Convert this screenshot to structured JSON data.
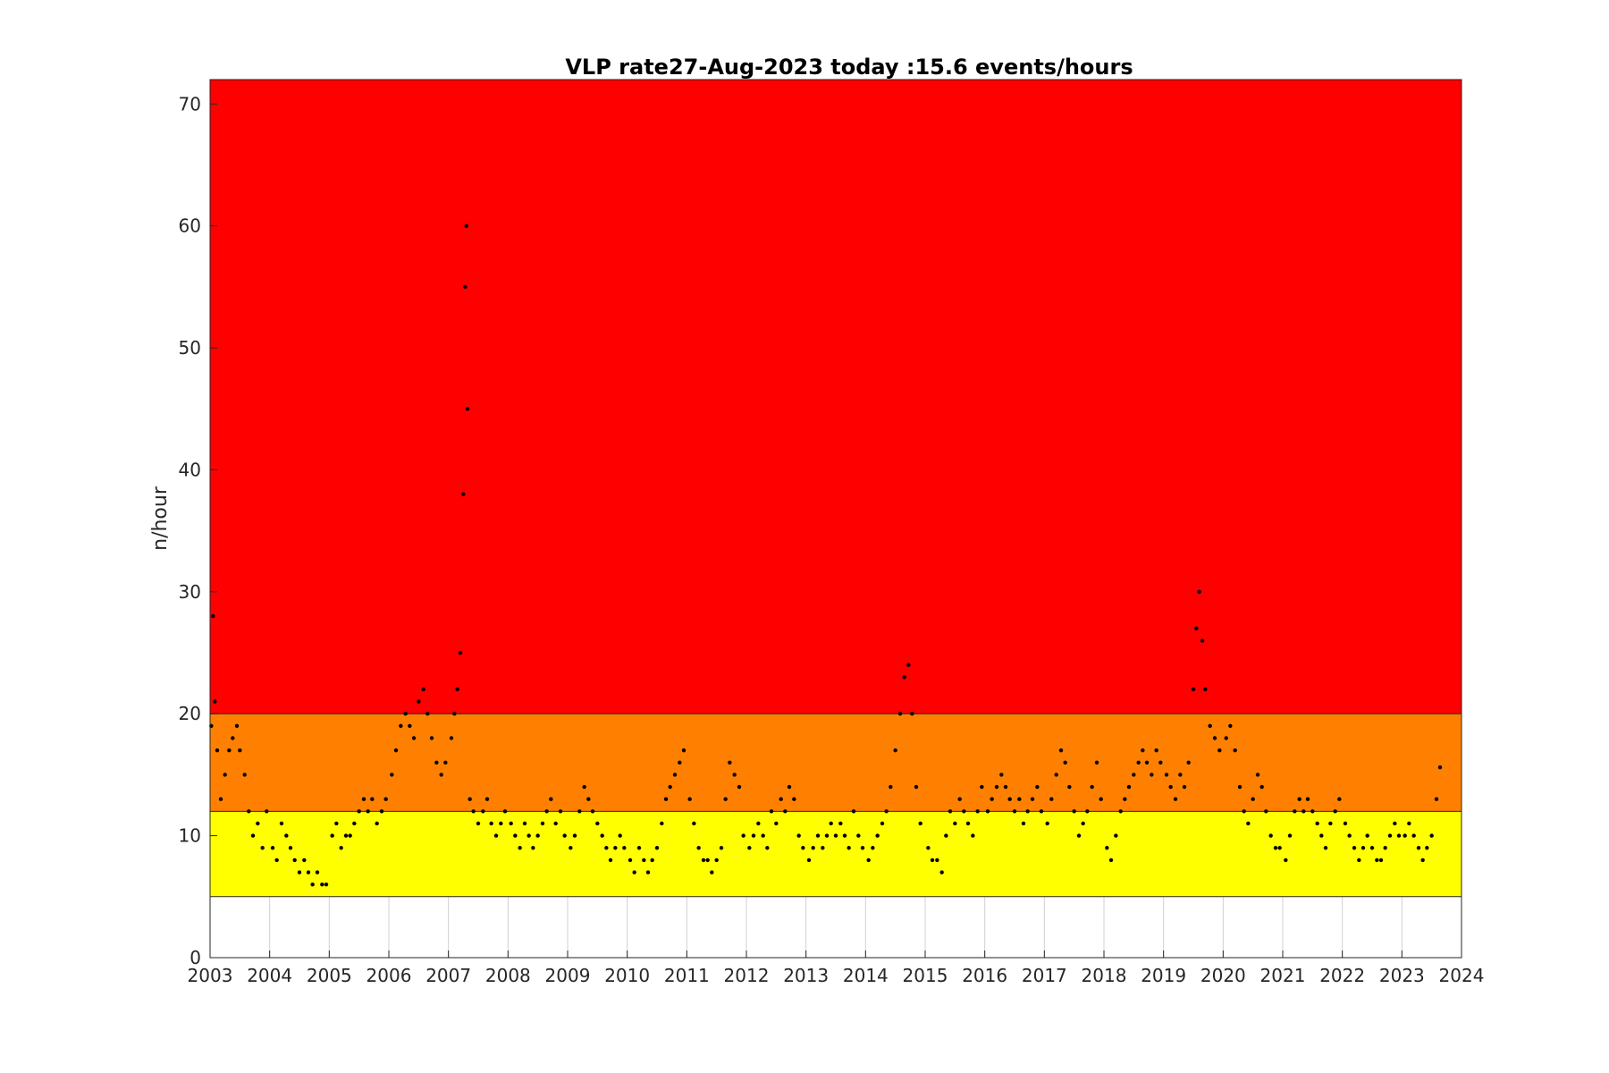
{
  "chart_data": {
    "type": "scatter",
    "title": "VLP rate27-Aug-2023 today :15.6 events/hours",
    "xlabel": "",
    "ylabel": "n/hour",
    "xlim": [
      2003,
      2024
    ],
    "ylim": [
      0,
      72
    ],
    "x_ticks": [
      "2003",
      "2004",
      "2005",
      "2006",
      "2007",
      "2008",
      "2009",
      "2010",
      "2011",
      "2012",
      "2013",
      "2014",
      "2015",
      "2016",
      "2017",
      "2018",
      "2019",
      "2020",
      "2021",
      "2022",
      "2023",
      "2024"
    ],
    "y_ticks": [
      "0",
      "10",
      "20",
      "30",
      "40",
      "50",
      "60",
      "70"
    ],
    "grid": "vertical lines below background bands",
    "bands": [
      {
        "level": "yellow",
        "from": 5,
        "to": 12,
        "color": "#ffff00"
      },
      {
        "level": "orange",
        "from": 12,
        "to": 20,
        "color": "#ff8000"
      },
      {
        "level": "red",
        "from": 20,
        "to": 72,
        "color": "#ff0000"
      }
    ],
    "marker_color": "#000000",
    "series": [
      {
        "points": [
          [
            2003.02,
            19
          ],
          [
            2003.05,
            28
          ],
          [
            2003.08,
            21
          ],
          [
            2003.12,
            17
          ],
          [
            2003.18,
            13
          ],
          [
            2003.25,
            15
          ],
          [
            2003.32,
            17
          ],
          [
            2003.38,
            18
          ],
          [
            2003.45,
            19
          ],
          [
            2003.5,
            17
          ],
          [
            2003.58,
            15
          ],
          [
            2003.65,
            12
          ],
          [
            2003.72,
            10
          ],
          [
            2003.8,
            11
          ],
          [
            2003.88,
            9
          ],
          [
            2003.95,
            12
          ],
          [
            2004.05,
            9
          ],
          [
            2004.12,
            8
          ],
          [
            2004.2,
            11
          ],
          [
            2004.28,
            10
          ],
          [
            2004.35,
            9
          ],
          [
            2004.42,
            8
          ],
          [
            2004.5,
            7
          ],
          [
            2004.58,
            8
          ],
          [
            2004.65,
            7
          ],
          [
            2004.72,
            6
          ],
          [
            2004.8,
            7
          ],
          [
            2004.88,
            6
          ],
          [
            2004.95,
            6
          ],
          [
            2005.05,
            10
          ],
          [
            2005.12,
            11
          ],
          [
            2005.2,
            9
          ],
          [
            2005.28,
            10
          ],
          [
            2005.35,
            10
          ],
          [
            2005.42,
            11
          ],
          [
            2005.5,
            12
          ],
          [
            2005.58,
            13
          ],
          [
            2005.65,
            12
          ],
          [
            2005.72,
            13
          ],
          [
            2005.8,
            11
          ],
          [
            2005.88,
            12
          ],
          [
            2005.95,
            13
          ],
          [
            2006.05,
            15
          ],
          [
            2006.12,
            17
          ],
          [
            2006.2,
            19
          ],
          [
            2006.28,
            20
          ],
          [
            2006.35,
            19
          ],
          [
            2006.42,
            18
          ],
          [
            2006.5,
            21
          ],
          [
            2006.58,
            22
          ],
          [
            2006.65,
            20
          ],
          [
            2006.72,
            18
          ],
          [
            2006.8,
            16
          ],
          [
            2006.88,
            15
          ],
          [
            2006.95,
            16
          ],
          [
            2007.05,
            18
          ],
          [
            2007.1,
            20
          ],
          [
            2007.15,
            22
          ],
          [
            2007.2,
            25
          ],
          [
            2007.25,
            38
          ],
          [
            2007.28,
            55
          ],
          [
            2007.3,
            60
          ],
          [
            2007.32,
            45
          ],
          [
            2007.36,
            13
          ],
          [
            2007.42,
            12
          ],
          [
            2007.5,
            11
          ],
          [
            2007.58,
            12
          ],
          [
            2007.65,
            13
          ],
          [
            2007.72,
            11
          ],
          [
            2007.8,
            10
          ],
          [
            2007.88,
            11
          ],
          [
            2007.95,
            12
          ],
          [
            2008.05,
            11
          ],
          [
            2008.12,
            10
          ],
          [
            2008.2,
            9
          ],
          [
            2008.28,
            11
          ],
          [
            2008.35,
            10
          ],
          [
            2008.42,
            9
          ],
          [
            2008.5,
            10
          ],
          [
            2008.58,
            11
          ],
          [
            2008.65,
            12
          ],
          [
            2008.72,
            13
          ],
          [
            2008.8,
            11
          ],
          [
            2008.88,
            12
          ],
          [
            2008.95,
            10
          ],
          [
            2009.05,
            9
          ],
          [
            2009.12,
            10
          ],
          [
            2009.2,
            12
          ],
          [
            2009.28,
            14
          ],
          [
            2009.35,
            13
          ],
          [
            2009.42,
            12
          ],
          [
            2009.5,
            11
          ],
          [
            2009.58,
            10
          ],
          [
            2009.65,
            9
          ],
          [
            2009.72,
            8
          ],
          [
            2009.8,
            9
          ],
          [
            2009.88,
            10
          ],
          [
            2009.95,
            9
          ],
          [
            2010.05,
            8
          ],
          [
            2010.12,
            7
          ],
          [
            2010.2,
            9
          ],
          [
            2010.28,
            8
          ],
          [
            2010.35,
            7
          ],
          [
            2010.42,
            8
          ],
          [
            2010.5,
            9
          ],
          [
            2010.58,
            11
          ],
          [
            2010.65,
            13
          ],
          [
            2010.72,
            14
          ],
          [
            2010.8,
            15
          ],
          [
            2010.88,
            16
          ],
          [
            2010.95,
            17
          ],
          [
            2011.05,
            13
          ],
          [
            2011.12,
            11
          ],
          [
            2011.2,
            9
          ],
          [
            2011.28,
            8
          ],
          [
            2011.35,
            8
          ],
          [
            2011.42,
            7
          ],
          [
            2011.5,
            8
          ],
          [
            2011.58,
            9
          ],
          [
            2011.65,
            13
          ],
          [
            2011.72,
            16
          ],
          [
            2011.8,
            15
          ],
          [
            2011.88,
            14
          ],
          [
            2011.95,
            10
          ],
          [
            2012.05,
            9
          ],
          [
            2012.12,
            10
          ],
          [
            2012.2,
            11
          ],
          [
            2012.28,
            10
          ],
          [
            2012.35,
            9
          ],
          [
            2012.42,
            12
          ],
          [
            2012.5,
            11
          ],
          [
            2012.58,
            13
          ],
          [
            2012.65,
            12
          ],
          [
            2012.72,
            14
          ],
          [
            2012.8,
            13
          ],
          [
            2012.88,
            10
          ],
          [
            2012.95,
            9
          ],
          [
            2013.05,
            8
          ],
          [
            2013.12,
            9
          ],
          [
            2013.2,
            10
          ],
          [
            2013.28,
            9
          ],
          [
            2013.35,
            10
          ],
          [
            2013.42,
            11
          ],
          [
            2013.5,
            10
          ],
          [
            2013.58,
            11
          ],
          [
            2013.65,
            10
          ],
          [
            2013.72,
            9
          ],
          [
            2013.8,
            12
          ],
          [
            2013.88,
            10
          ],
          [
            2013.95,
            9
          ],
          [
            2014.05,
            8
          ],
          [
            2014.12,
            9
          ],
          [
            2014.2,
            10
          ],
          [
            2014.28,
            11
          ],
          [
            2014.35,
            12
          ],
          [
            2014.42,
            14
          ],
          [
            2014.5,
            17
          ],
          [
            2014.58,
            20
          ],
          [
            2014.65,
            23
          ],
          [
            2014.72,
            24
          ],
          [
            2014.78,
            20
          ],
          [
            2014.85,
            14
          ],
          [
            2014.92,
            11
          ],
          [
            2015.05,
            9
          ],
          [
            2015.12,
            8
          ],
          [
            2015.2,
            8
          ],
          [
            2015.28,
            7
          ],
          [
            2015.35,
            10
          ],
          [
            2015.42,
            12
          ],
          [
            2015.5,
            11
          ],
          [
            2015.58,
            13
          ],
          [
            2015.65,
            12
          ],
          [
            2015.72,
            11
          ],
          [
            2015.8,
            10
          ],
          [
            2015.88,
            12
          ],
          [
            2015.95,
            14
          ],
          [
            2016.05,
            12
          ],
          [
            2016.12,
            13
          ],
          [
            2016.2,
            14
          ],
          [
            2016.28,
            15
          ],
          [
            2016.35,
            14
          ],
          [
            2016.42,
            13
          ],
          [
            2016.5,
            12
          ],
          [
            2016.58,
            13
          ],
          [
            2016.65,
            11
          ],
          [
            2016.72,
            12
          ],
          [
            2016.8,
            13
          ],
          [
            2016.88,
            14
          ],
          [
            2016.95,
            12
          ],
          [
            2017.05,
            11
          ],
          [
            2017.12,
            13
          ],
          [
            2017.2,
            15
          ],
          [
            2017.28,
            17
          ],
          [
            2017.35,
            16
          ],
          [
            2017.42,
            14
          ],
          [
            2017.5,
            12
          ],
          [
            2017.58,
            10
          ],
          [
            2017.65,
            11
          ],
          [
            2017.72,
            12
          ],
          [
            2017.8,
            14
          ],
          [
            2017.88,
            16
          ],
          [
            2017.95,
            13
          ],
          [
            2018.05,
            9
          ],
          [
            2018.12,
            8
          ],
          [
            2018.2,
            10
          ],
          [
            2018.28,
            12
          ],
          [
            2018.35,
            13
          ],
          [
            2018.42,
            14
          ],
          [
            2018.5,
            15
          ],
          [
            2018.58,
            16
          ],
          [
            2018.65,
            17
          ],
          [
            2018.72,
            16
          ],
          [
            2018.8,
            15
          ],
          [
            2018.88,
            17
          ],
          [
            2018.95,
            16
          ],
          [
            2019.05,
            15
          ],
          [
            2019.12,
            14
          ],
          [
            2019.2,
            13
          ],
          [
            2019.28,
            15
          ],
          [
            2019.35,
            14
          ],
          [
            2019.42,
            16
          ],
          [
            2019.5,
            22
          ],
          [
            2019.55,
            27
          ],
          [
            2019.6,
            30
          ],
          [
            2019.65,
            26
          ],
          [
            2019.7,
            22
          ],
          [
            2019.78,
            19
          ],
          [
            2019.86,
            18
          ],
          [
            2019.94,
            17
          ],
          [
            2020.05,
            18
          ],
          [
            2020.12,
            19
          ],
          [
            2020.2,
            17
          ],
          [
            2020.28,
            14
          ],
          [
            2020.35,
            12
          ],
          [
            2020.42,
            11
          ],
          [
            2020.5,
            13
          ],
          [
            2020.58,
            15
          ],
          [
            2020.65,
            14
          ],
          [
            2020.72,
            12
          ],
          [
            2020.8,
            10
          ],
          [
            2020.88,
            9
          ],
          [
            2020.95,
            9
          ],
          [
            2021.05,
            8
          ],
          [
            2021.12,
            10
          ],
          [
            2021.2,
            12
          ],
          [
            2021.28,
            13
          ],
          [
            2021.35,
            12
          ],
          [
            2021.42,
            13
          ],
          [
            2021.5,
            12
          ],
          [
            2021.58,
            11
          ],
          [
            2021.65,
            10
          ],
          [
            2021.72,
            9
          ],
          [
            2021.8,
            11
          ],
          [
            2021.88,
            12
          ],
          [
            2021.95,
            13
          ],
          [
            2022.05,
            11
          ],
          [
            2022.12,
            10
          ],
          [
            2022.2,
            9
          ],
          [
            2022.28,
            8
          ],
          [
            2022.35,
            9
          ],
          [
            2022.42,
            10
          ],
          [
            2022.5,
            9
          ],
          [
            2022.58,
            8
          ],
          [
            2022.65,
            8
          ],
          [
            2022.72,
            9
          ],
          [
            2022.8,
            10
          ],
          [
            2022.88,
            11
          ],
          [
            2022.95,
            10
          ],
          [
            2023.05,
            10
          ],
          [
            2023.12,
            11
          ],
          [
            2023.2,
            10
          ],
          [
            2023.28,
            9
          ],
          [
            2023.35,
            8
          ],
          [
            2023.42,
            9
          ],
          [
            2023.5,
            10
          ],
          [
            2023.58,
            13
          ],
          [
            2023.64,
            15.6
          ]
        ]
      }
    ]
  }
}
